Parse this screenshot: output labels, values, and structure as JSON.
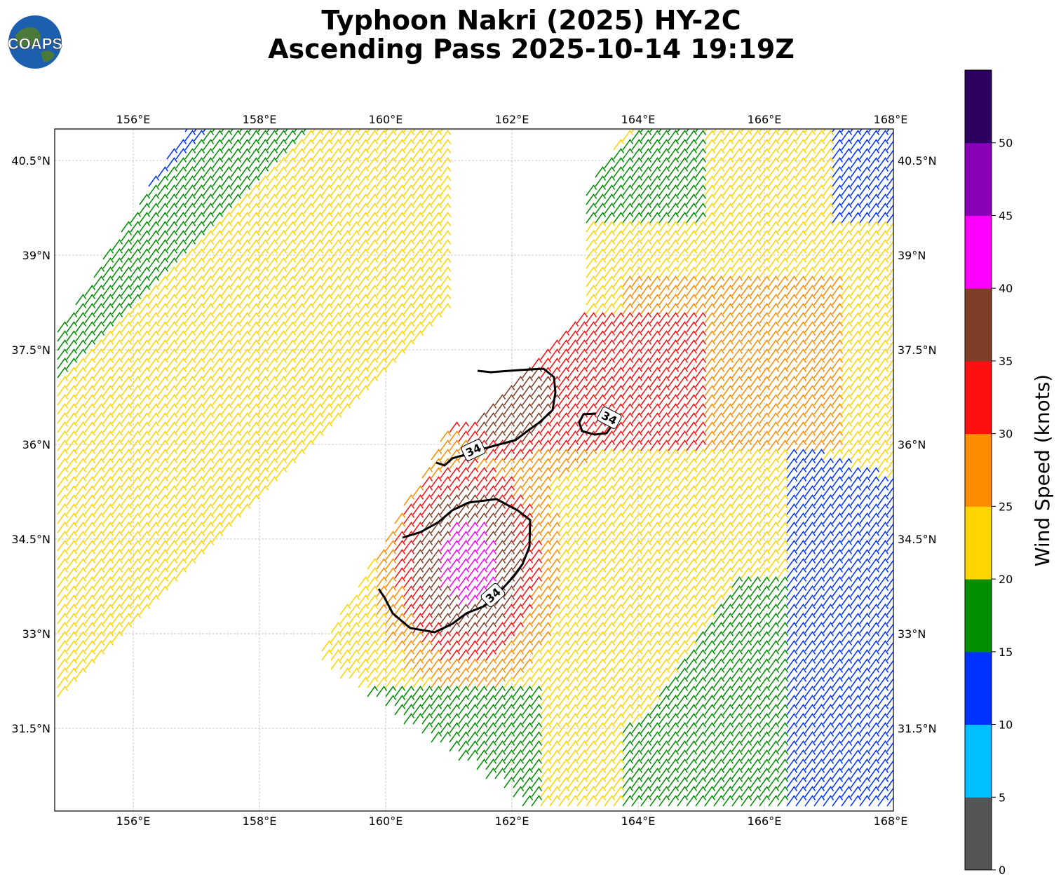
{
  "title_line1": "Typhoon Nakri (2025) HY-2C",
  "title_line2": "Ascending Pass 2025-10-14 19:19Z",
  "logo_text": "COAPS",
  "lon_ticks": [
    "156°E",
    "158°E",
    "160°E",
    "162°E",
    "164°E",
    "166°E",
    "168°E"
  ],
  "lat_ticks": [
    "40.5°N",
    "39°N",
    "37.5°N",
    "36°N",
    "34.5°N",
    "33°N",
    "31.5°N"
  ],
  "colorbar": {
    "label": "Wind Speed (knots)",
    "ticks": [
      "0",
      "5",
      "10",
      "15",
      "20",
      "25",
      "30",
      "35",
      "40",
      "45",
      "50"
    ],
    "bins": [
      {
        "range": "0-5",
        "color": "#555555"
      },
      {
        "range": "5-10",
        "color": "#00bfff"
      },
      {
        "range": "10-15",
        "color": "#0033ff"
      },
      {
        "range": "15-20",
        "color": "#008f00"
      },
      {
        "range": "20-25",
        "color": "#ffd400"
      },
      {
        "range": "25-30",
        "color": "#ff8c00"
      },
      {
        "range": "30-35",
        "color": "#ff0f0f"
      },
      {
        "range": "35-40",
        "color": "#803e28"
      },
      {
        "range": "40-45",
        "color": "#ff00ff"
      },
      {
        "range": "45-50",
        "color": "#8a00b8"
      },
      {
        "range": "50+",
        "color": "#2b0060"
      }
    ]
  },
  "contour_labels": [
    "34",
    "34",
    "34"
  ]
}
